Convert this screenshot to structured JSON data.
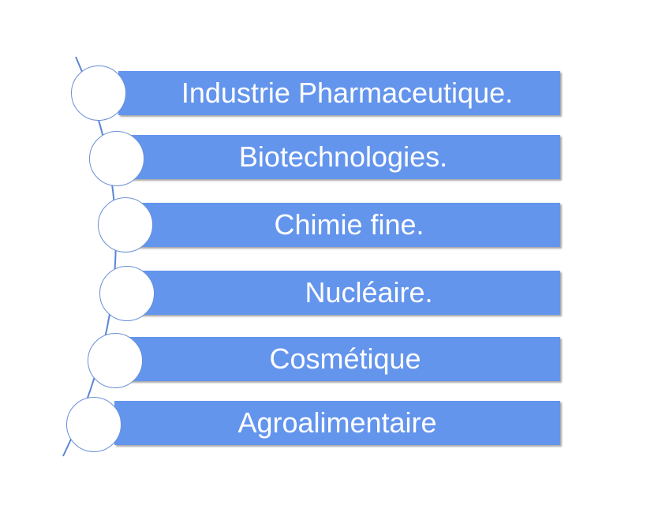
{
  "diagram": {
    "type": "vertical-curved-list",
    "items": [
      {
        "label": "Industrie Pharmaceutique."
      },
      {
        "label": "Biotechnologies."
      },
      {
        "label": "Chimie fine."
      },
      {
        "label": "Nucléaire."
      },
      {
        "label": "Cosmétique"
      },
      {
        "label": "Agroalimentaire"
      }
    ],
    "colors": {
      "bar_fill": "#6495ed",
      "bar_text": "#ffffff",
      "node_fill": "#ffffff",
      "node_stroke": "#6a8fd8",
      "spine": "#5b86d6"
    }
  }
}
